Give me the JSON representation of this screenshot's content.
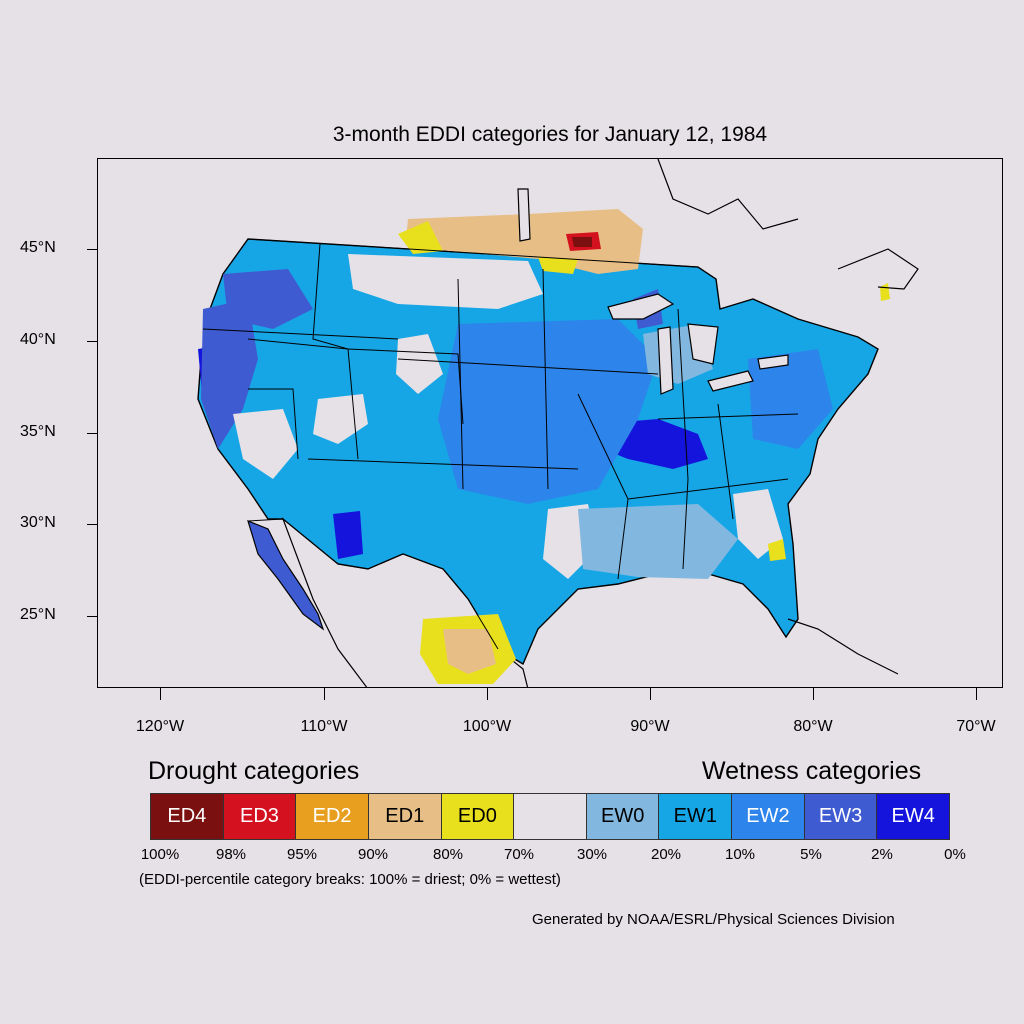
{
  "title": "3-month EDDI categories for January 12, 1984",
  "map": {
    "lat_labels": [
      "45°N",
      "40°N",
      "35°N",
      "30°N",
      "25°N"
    ],
    "lon_labels": [
      "120°W",
      "110°W",
      "100°W",
      "90°W",
      "80°W",
      "70°W"
    ],
    "colors": {
      "background": "#e6e1e6",
      "ED4": "#7a1010",
      "ED3": "#d4111e",
      "ED2": "#e89e1e",
      "ED1": "#e7bf86",
      "ED0": "#e8e01c",
      "neutral": "#e6e1e6",
      "EW0": "#82b8e0",
      "EW1": "#16a6e6",
      "EW2": "#2d84ea",
      "EW3": "#3f5bd2",
      "EW4": "#1414dc",
      "borders": "#000000"
    }
  },
  "legend": {
    "drought_heading": "Drought categories",
    "wetness_heading": "Wetness categories",
    "categories": [
      {
        "label": "ED4",
        "color": "#7a1010",
        "text_color": "#ffffff"
      },
      {
        "label": "ED3",
        "color": "#d4111e",
        "text_color": "#ffffff"
      },
      {
        "label": "ED2",
        "color": "#e89e1e",
        "text_color": "#ffffff"
      },
      {
        "label": "ED1",
        "color": "#e7bf86",
        "text_color": "#000000"
      },
      {
        "label": "ED0",
        "color": "#e8e01c",
        "text_color": "#000000"
      },
      {
        "label": "",
        "color": "#e6e1e6",
        "text_color": "#000000"
      },
      {
        "label": "EW0",
        "color": "#82b8e0",
        "text_color": "#000000"
      },
      {
        "label": "EW1",
        "color": "#16a6e6",
        "text_color": "#000000"
      },
      {
        "label": "EW2",
        "color": "#2d84ea",
        "text_color": "#ffffff"
      },
      {
        "label": "EW3",
        "color": "#3f5bd2",
        "text_color": "#ffffff"
      },
      {
        "label": "EW4",
        "color": "#1414dc",
        "text_color": "#ffffff"
      }
    ],
    "percent_labels": [
      "100%",
      "98%",
      "95%",
      "90%",
      "80%",
      "70%",
      "30%",
      "20%",
      "10%",
      "5%",
      "2%",
      "0%"
    ],
    "footnote": "(EDDI-percentile category breaks: 100% = driest; 0% = wettest)"
  },
  "credit": "Generated by NOAA/ESRL/Physical Sciences Division"
}
